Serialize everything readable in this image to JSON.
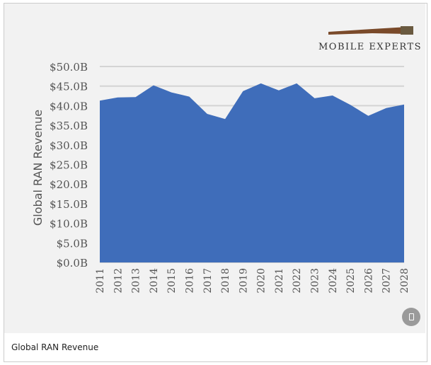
{
  "logo": {
    "text": "MOBILE EXPERTS"
  },
  "caption": "Global RAN Revenue",
  "colors": {
    "area": "#3f6dba",
    "grid": "#d4d4d4",
    "text": "#555555"
  },
  "chart_data": {
    "type": "area",
    "title": "",
    "xlabel": "",
    "ylabel": "Global RAN Revenue",
    "ylim": [
      0,
      50
    ],
    "yticks": [
      "$0.0B",
      "$5.0B",
      "$10.0B",
      "$15.0B",
      "$20.0B",
      "$25.0B",
      "$30.0B",
      "$35.0B",
      "$40.0B",
      "$45.0B",
      "$50.0B"
    ],
    "grid": true,
    "x": [
      "2011",
      "2012",
      "2013",
      "2014",
      "2015",
      "2016",
      "2017",
      "2018",
      "2019",
      "2020",
      "2021",
      "2022",
      "2023",
      "2024",
      "2025",
      "2026",
      "2027",
      "2028"
    ],
    "values": [
      41.3,
      42.1,
      42.2,
      45.2,
      43.4,
      42.3,
      37.9,
      36.6,
      43.7,
      45.7,
      43.9,
      45.7,
      41.9,
      42.6,
      40.2,
      37.4,
      39.4,
      40.3
    ]
  }
}
